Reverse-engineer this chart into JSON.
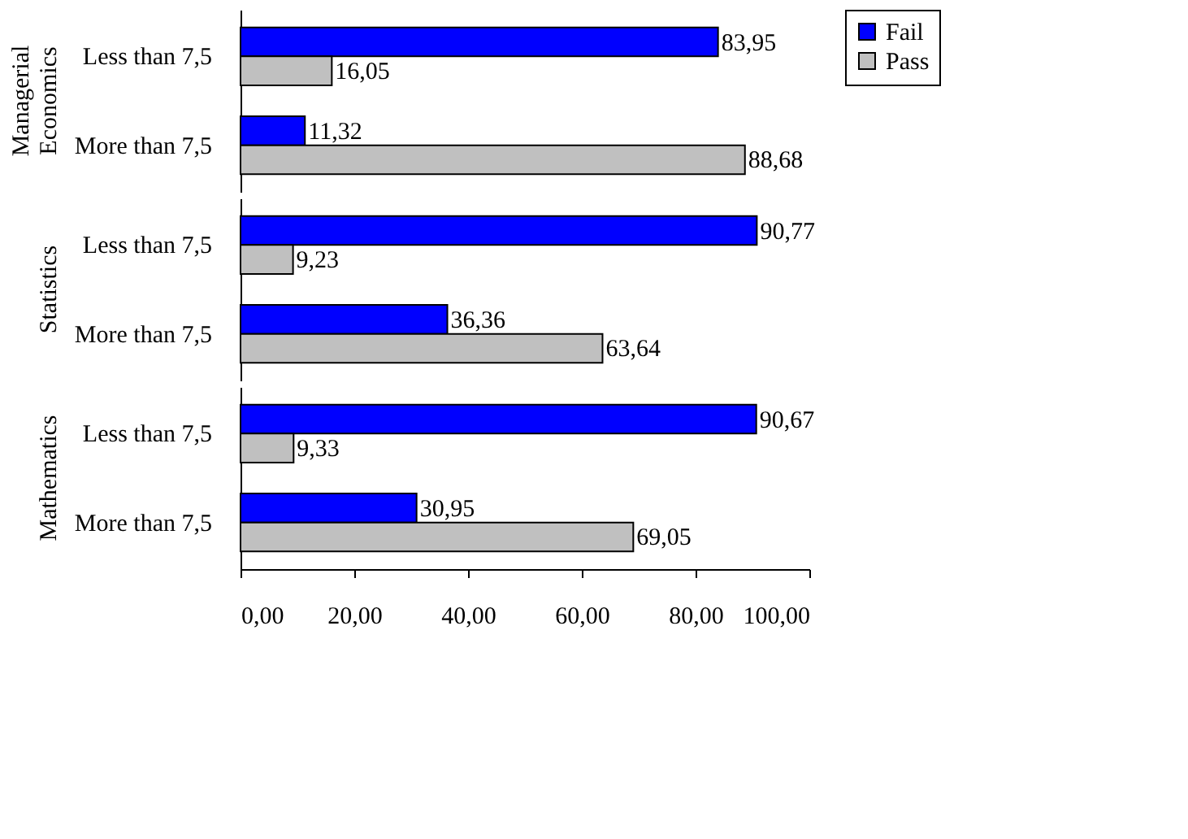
{
  "chart_data": [
    {
      "type": "bar",
      "orientation": "horizontal",
      "title": "Managerial Economics",
      "categories": [
        "Less than 7,5",
        "More than 7,5"
      ],
      "xlim": [
        0,
        100
      ],
      "tick_labels": "y",
      "grid": false,
      "legend": "right",
      "series": [
        {
          "name": "Fail",
          "color": "#0000ff",
          "values": [
            83.95,
            11.32
          ],
          "value_labels": [
            "83,95",
            "11,32"
          ]
        },
        {
          "name": "Pass",
          "color": "#c0c0c0",
          "values": [
            16.05,
            88.68
          ],
          "value_labels": [
            "16,05",
            "88,68"
          ]
        }
      ]
    },
    {
      "type": "bar",
      "orientation": "horizontal",
      "title": "Statistics",
      "categories": [
        "Less than 7,5",
        "More than 7,5"
      ],
      "xlim": [
        0,
        100
      ],
      "tick_labels": "y",
      "grid": false,
      "legend": "right",
      "series": [
        {
          "name": "Fail",
          "color": "#0000ff",
          "values": [
            90.77,
            36.36
          ],
          "value_labels": [
            "90,77",
            "36,36"
          ]
        },
        {
          "name": "Pass",
          "color": "#c0c0c0",
          "values": [
            9.23,
            63.64
          ],
          "value_labels": [
            "9,23",
            "63,64"
          ]
        }
      ]
    },
    {
      "type": "bar",
      "orientation": "horizontal",
      "title": "Mathematics",
      "categories": [
        "Less than 7,5",
        "More than 7,5"
      ],
      "xlim": [
        0,
        100
      ],
      "xticks": [
        {
          "value": 0,
          "label": "0,00"
        },
        {
          "value": 20,
          "label": "20,00"
        },
        {
          "value": 40,
          "label": "40,00"
        },
        {
          "value": 60,
          "label": "60,00"
        },
        {
          "value": 80,
          "label": "80,00"
        },
        {
          "value": 100,
          "label": "100,00"
        }
      ],
      "grid": false,
      "legend": "right",
      "series": [
        {
          "name": "Fail",
          "color": "#0000ff",
          "values": [
            90.67,
            30.95
          ],
          "value_labels": [
            "90,67",
            "30,95"
          ]
        },
        {
          "name": "Pass",
          "color": "#c0c0c0",
          "values": [
            9.33,
            69.05
          ],
          "value_labels": [
            "9,33",
            "69,05"
          ]
        }
      ]
    }
  ]
}
